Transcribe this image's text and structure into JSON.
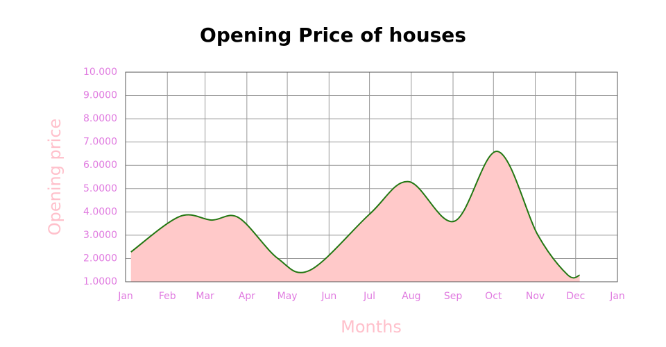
{
  "chart_data": {
    "type": "area",
    "title": "Opening Price of houses",
    "x_label": "Months",
    "y_label": "Opening price",
    "x": [
      4,
      40,
      64,
      84,
      113,
      137,
      181,
      210,
      244,
      276,
      306,
      328,
      337
    ],
    "values": [
      2.28,
      3.8,
      3.65,
      3.75,
      2.0,
      1.5,
      3.9,
      5.3,
      3.6,
      6.6,
      3.0,
      1.3,
      1.28
    ],
    "color": "#227711",
    "fill_color": "#ffc9c9",
    "tick_color": "#e07be0",
    "xlim": [
      0,
      365
    ],
    "xticks": [
      {
        "value": 0,
        "label": "Jan"
      },
      {
        "value": 31,
        "label": "Feb"
      },
      {
        "value": 59,
        "label": "Mar"
      },
      {
        "value": 90,
        "label": "Apr"
      },
      {
        "value": 120,
        "label": "May"
      },
      {
        "value": 151,
        "label": "Jun"
      },
      {
        "value": 181,
        "label": "Jul"
      },
      {
        "value": 212,
        "label": "Aug"
      },
      {
        "value": 243,
        "label": "Sep"
      },
      {
        "value": 273,
        "label": "Oct"
      },
      {
        "value": 304,
        "label": "Nov"
      },
      {
        "value": 334,
        "label": "Dec"
      },
      {
        "value": 365,
        "label": "Jan"
      }
    ],
    "ylim": [
      1,
      10
    ],
    "yticks": [
      {
        "value": 1,
        "label": "1.0000"
      },
      {
        "value": 2,
        "label": "2.0000"
      },
      {
        "value": 3,
        "label": "3.0000"
      },
      {
        "value": 4,
        "label": "4.0000"
      },
      {
        "value": 5,
        "label": "5.0000"
      },
      {
        "value": 6,
        "label": "6.0000"
      },
      {
        "value": 7,
        "label": "7.0000"
      },
      {
        "value": 8,
        "label": "8.0000"
      },
      {
        "value": 9,
        "label": "9.0000"
      },
      {
        "value": 10,
        "label": "10.000"
      }
    ],
    "grid": true
  }
}
